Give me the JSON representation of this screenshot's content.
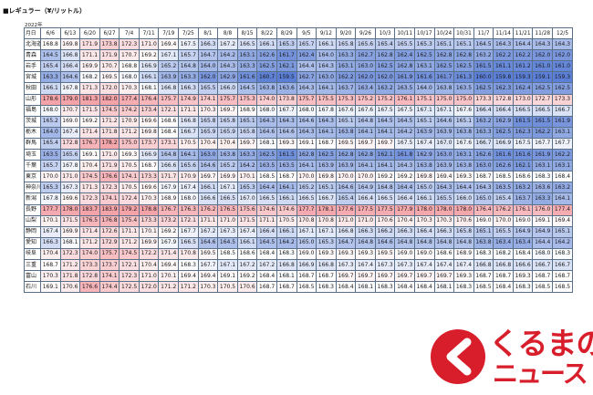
{
  "title": "■レギュラー（¥/リットル）",
  "year_label": "2022年",
  "header": {
    "pref_label": "月日",
    "dates": [
      "6/6",
      "6/13",
      "6/20",
      "6/27",
      "7/4",
      "7/11",
      "7/19",
      "7/25",
      "8/1",
      "8/8",
      "8/15",
      "8/22",
      "8/29",
      "9/5",
      "9/12",
      "9/20",
      "9/26",
      "10/3",
      "10/11",
      "10/17",
      "10/24",
      "10/31",
      "11/7",
      "11/14",
      "11/21",
      "11/28",
      "12/5"
    ]
  },
  "colors": {
    "high": "#f4a3a8",
    "high_mid": "#f8c8cb",
    "low": "#5b7fd6",
    "low_mid": "#aebfe9",
    "mid": "#ffffff",
    "border": "#5a6f88",
    "logo": "#d81e2a"
  },
  "rows": [
    {
      "pref": "北海道",
      "values": [
        "168.8",
        "169.8",
        "171.9",
        "173.8",
        "172.3",
        "171.0",
        "169.4",
        "167.5",
        "166.3",
        "167.2",
        "166.5",
        "166.1",
        "165.3",
        "165.7",
        "166.1",
        "165.8",
        "165.6",
        "165.4",
        "165.5",
        "165.3",
        "165.1",
        "165.1",
        "164.5",
        "164.3",
        "164.4",
        "164.3",
        "164.3"
      ]
    },
    {
      "pref": "青森",
      "values": [
        "164.5",
        "166.8",
        "171.1",
        "171.9",
        "170.7",
        "169.2",
        "167.1",
        "165.7",
        "164.7",
        "164.2",
        "163.1",
        "162.6",
        "161.7",
        "162.4",
        "164.0",
        "163.3",
        "162.7",
        "162.8",
        "162.4",
        "162.5",
        "162.8",
        "162.8",
        "163.2",
        "162.2",
        "162.2",
        "162.0",
        "162.0"
      ]
    },
    {
      "pref": "岩手",
      "values": [
        "165.4",
        "166.4",
        "169.9",
        "170.7",
        "168.8",
        "166.9",
        "165.2",
        "164.8",
        "164.0",
        "164.3",
        "163.3",
        "162.5",
        "162.1",
        "164.4",
        "164.3",
        "163.1",
        "163.0",
        "162.5",
        "162.8",
        "163.1",
        "162.5",
        "162.5",
        "161.5",
        "161.1",
        "161.2",
        "161.0",
        "161.0"
      ]
    },
    {
      "pref": "宮城",
      "values": [
        "163.3",
        "164.6",
        "168.2",
        "169.5",
        "168.0",
        "166.1",
        "163.9",
        "163.3",
        "162.0",
        "162.9",
        "161.6",
        "160.7",
        "159.5",
        "162.7",
        "163.0",
        "162.2",
        "162.0",
        "162.0",
        "161.9",
        "161.6",
        "161.7",
        "161.3",
        "160.0",
        "159.8",
        "159.3",
        "159.1",
        "159.3"
      ]
    },
    {
      "pref": "秋田",
      "values": [
        "166.1",
        "167.8",
        "171.3",
        "172.0",
        "170.3",
        "168.1",
        "166.8",
        "166.3",
        "165.5",
        "166.0",
        "164.5",
        "163.8",
        "163.6",
        "164.3",
        "164.1",
        "163.7",
        "163.4",
        "163.2",
        "163.5",
        "164.0",
        "163.8",
        "163.5",
        "162.5",
        "162.3",
        "162.4",
        "162.5",
        "162.5"
      ]
    },
    {
      "pref": "山形",
      "values": [
        "178.6",
        "179.0",
        "181.3",
        "182.0",
        "177.4",
        "176.4",
        "175.7",
        "174.9",
        "174.1",
        "175.7",
        "175.3",
        "174.0",
        "173.8",
        "175.7",
        "175.5",
        "175.3",
        "175.2",
        "175.2",
        "176.1",
        "175.1",
        "175.0",
        "175.0",
        "173.3",
        "172.8",
        "173.0",
        "172.7",
        "173.3"
      ]
    },
    {
      "pref": "福島",
      "values": [
        "168.0",
        "170.7",
        "171.5",
        "174.5",
        "174.2",
        "173.4",
        "172.1",
        "171.1",
        "170.3",
        "169.7",
        "168.9",
        "168.0",
        "167.7",
        "168.0",
        "167.8",
        "167.6",
        "167.6",
        "167.5",
        "167.5",
        "167.1",
        "167.1",
        "167.6",
        "166.4",
        "166.4",
        "166.5",
        "166.5",
        "166.7"
      ]
    },
    {
      "pref": "茨城",
      "values": [
        "165.2",
        "169.0",
        "169.2",
        "171.2",
        "170.9",
        "169.6",
        "168.6",
        "166.8",
        "165.8",
        "165.8",
        "165.1",
        "164.3",
        "164.3",
        "164.6",
        "164.3",
        "165.1",
        "164.8",
        "164.5",
        "164.5",
        "165.1",
        "164.6",
        "165.1",
        "163.2",
        "162.9",
        "161.5",
        "161.5",
        "161.9"
      ]
    },
    {
      "pref": "栃木",
      "values": [
        "164.0",
        "167.4",
        "171.4",
        "171.8",
        "171.2",
        "169.8",
        "168.4",
        "166.7",
        "165.9",
        "165.9",
        "165.8",
        "164.6",
        "164.6",
        "164.3",
        "164.1",
        "163.8",
        "164.1",
        "164.1",
        "164.2",
        "163.9",
        "163.9",
        "163.8",
        "163.3",
        "162.5",
        "162.3",
        "162.2",
        "163.1"
      ]
    },
    {
      "pref": "群馬",
      "values": [
        "165.4",
        "172.8",
        "176.7",
        "178.2",
        "175.0",
        "173.7",
        "173.1",
        "170.5",
        "170.4",
        "170.4",
        "169.7",
        "168.1",
        "169.3",
        "169.1",
        "168.7",
        "169.5",
        "169.7",
        "169.7",
        "167.5",
        "167.4",
        "167.0",
        "167.6",
        "166.7",
        "166.9",
        "167.5",
        "167.7",
        "167.7"
      ]
    },
    {
      "pref": "埼玉",
      "values": [
        "163.5",
        "165.6",
        "169.1",
        "171.0",
        "169.3",
        "166.9",
        "164.8",
        "164.1",
        "163.0",
        "163.8",
        "163.3",
        "162.5",
        "161.5",
        "162.8",
        "162.5",
        "162.8",
        "162.8",
        "162.1",
        "161.8",
        "162.9",
        "163.0",
        "163.1",
        "162.6",
        "161.6",
        "161.6",
        "161.9",
        "162.2"
      ]
    },
    {
      "pref": "千葉",
      "values": [
        "165.7",
        "167.8",
        "170.4",
        "171.9",
        "170.5",
        "168.7",
        "166.6",
        "165.6",
        "164.6",
        "165.2",
        "164.2",
        "163.5",
        "163.5",
        "164.1",
        "163.9",
        "163.9",
        "164.1",
        "164.1",
        "164.3",
        "163.8",
        "163.9",
        "163.8",
        "163.0",
        "162.6",
        "162.1",
        "163.1",
        "163.1"
      ]
    },
    {
      "pref": "東京",
      "values": [
        "170.0",
        "171.0",
        "174.5",
        "176.6",
        "174.1",
        "173.3",
        "171.7",
        "170.9",
        "169.7",
        "169.9",
        "170.1",
        "168.5",
        "168.7",
        "170.0",
        "169.8",
        "170.0",
        "170.0",
        "169.2",
        "169.2",
        "169.8",
        "169.4",
        "169.3",
        "168.7",
        "168.5",
        "168.6",
        "168.3",
        "168.4"
      ]
    },
    {
      "pref": "神奈川",
      "values": [
        "165.3",
        "167.3",
        "171.3",
        "172.3",
        "170.5",
        "169.6",
        "167.9",
        "167.4",
        "166.1",
        "167.1",
        "165.3",
        "164.4",
        "164.1",
        "165.2",
        "165.1",
        "164.6",
        "164.9",
        "164.8",
        "164.4",
        "165.0",
        "164.3",
        "164.4",
        "164.3",
        "163.5",
        "163.2",
        "163.6",
        "163.2"
      ]
    },
    {
      "pref": "新潟",
      "values": [
        "167.8",
        "169.6",
        "172.3",
        "174.1",
        "172.4",
        "170.3",
        "168.9",
        "168.0",
        "166.6",
        "166.5",
        "167.0",
        "166.5",
        "166.1",
        "166.5",
        "166.7",
        "165.4",
        "166.4",
        "166.5",
        "166.4",
        "166.1",
        "165.5",
        "166.0",
        "165.0",
        "165.4",
        "163.7",
        "163.3",
        "164.1"
      ]
    },
    {
      "pref": "長野",
      "values": [
        "177.7",
        "178.0",
        "183.7",
        "183.9",
        "179.2",
        "178.8",
        "176.7",
        "176.3",
        "176.2",
        "176.5",
        "175.6",
        "174.6",
        "174.6",
        "177.7",
        "178.1",
        "177.6",
        "177.5",
        "177.5",
        "177.9",
        "178.0",
        "178.0",
        "178.0",
        "176.4",
        "176.2",
        "176.1",
        "176.0",
        "177.4"
      ]
    },
    {
      "pref": "山梨",
      "values": [
        "170.1",
        "171.5",
        "176.5",
        "176.8",
        "175.4",
        "173.3",
        "173.2",
        "172.1",
        "171.1",
        "171.0",
        "171.5",
        "171.1",
        "170.5",
        "170.8",
        "170.8",
        "171.0",
        "171.0",
        "170.6",
        "170.4",
        "170.3",
        "170.3",
        "170.6",
        "169.0",
        "170.0",
        "169.0",
        "169.1",
        "169.4"
      ]
    },
    {
      "pref": "静岡",
      "values": [
        "167.4",
        "169.9",
        "171.4",
        "172.6",
        "171.1",
        "170.1",
        "169.2",
        "167.7",
        "167.2",
        "167.3",
        "167.4",
        "166.4",
        "166.1",
        "167.1",
        "167.1",
        "166.8",
        "166.3",
        "166.2",
        "166.3",
        "166.4",
        "166.3",
        "165.8",
        "165.1",
        "165.5",
        "164.9",
        "164.9",
        "165.1"
      ]
    },
    {
      "pref": "愛知",
      "values": [
        "166.3",
        "168.1",
        "171.2",
        "172.9",
        "171.2",
        "169.9",
        "167.9",
        "166.5",
        "164.6",
        "164.5",
        "166.1",
        "164.5",
        "164.2",
        "165.0",
        "165.3",
        "164.7",
        "164.8",
        "164.6",
        "164.8",
        "164.8",
        "164.8",
        "164.8",
        "163.8",
        "163.4",
        "163.4",
        "164.4",
        "164.2"
      ]
    },
    {
      "pref": "岐阜",
      "values": [
        "170.4",
        "172.3",
        "174.0",
        "175.7",
        "174.5",
        "172.2",
        "171.4",
        "170.8",
        "169.5",
        "168.5",
        "168.6",
        "168.4",
        "168.3",
        "169.0",
        "169.3",
        "169.3",
        "169.3",
        "169.5",
        "169.0",
        "169.0",
        "168.6",
        "168.9",
        "168.3",
        "168.2",
        "168.4",
        "168.0",
        "168.3"
      ]
    },
    {
      "pref": "三重",
      "values": [
        "168.7",
        "171.2",
        "173.3",
        "173.7",
        "172.1",
        "170.4",
        "169.4",
        "168.3",
        "167.7",
        "167.1",
        "167.2",
        "167.2",
        "166.8",
        "166.9",
        "166.8",
        "167.3",
        "167.4",
        "167.3",
        "167.3",
        "167.4",
        "167.4",
        "167.4",
        "166.8",
        "166.8",
        "166.6",
        "166.7",
        "166.7"
      ]
    },
    {
      "pref": "富山",
      "values": [
        "170.3",
        "171.8",
        "172.8",
        "174.1",
        "172.3",
        "171.0",
        "170.1",
        "169.4",
        "169.4",
        "169.1",
        "169.2",
        "168.4",
        "168.1",
        "168.7",
        "168.7",
        "169.7",
        "169.7",
        "169.7",
        "169.7",
        "169.7",
        "169.7",
        "169.3",
        "168.7",
        "168.7",
        "169.3",
        "168.7",
        "168.7"
      ]
    },
    {
      "pref": "石川",
      "values": [
        "169.1",
        "170.6",
        "176.6",
        "174.4",
        "172.5",
        "172.0",
        "171.2",
        "171.2",
        "170.3",
        "170.5",
        "170.6",
        "168.7",
        "168.7",
        "168.5",
        "168.3",
        "168.4",
        "168.1",
        "168.3",
        "168.4",
        "168.4",
        "168.1",
        "168.3",
        "168.5",
        "168.4",
        "168.3",
        "168.5",
        "168.5"
      ]
    }
  ],
  "logo": {
    "line1": "くるまの",
    "line2": "ニュース"
  }
}
